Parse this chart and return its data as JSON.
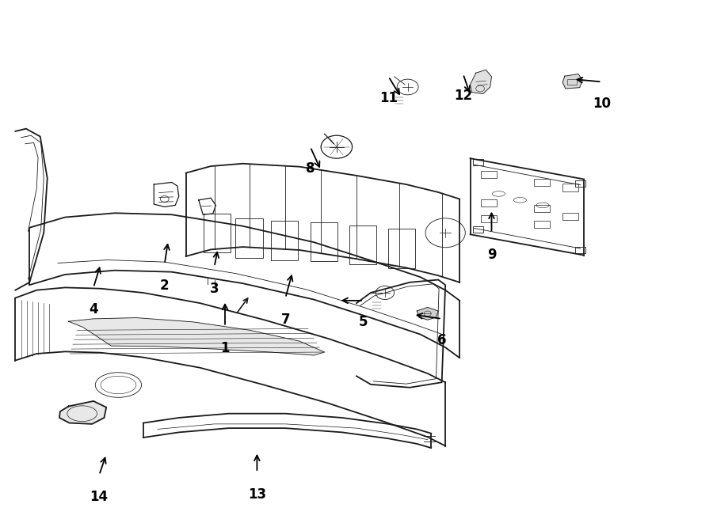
{
  "background_color": "#ffffff",
  "line_color": "#1a1a1a",
  "fig_width": 9.0,
  "fig_height": 6.61,
  "label_configs": {
    "1": [
      0.315,
      0.375,
      0.0,
      0.05
    ],
    "2": [
      0.23,
      0.495,
      0.005,
      0.045
    ],
    "3": [
      0.3,
      0.49,
      0.005,
      0.035
    ],
    "4": [
      0.13,
      0.45,
      0.01,
      0.045
    ],
    "5": [
      0.51,
      0.425,
      -0.035,
      0.0
    ],
    "6": [
      0.62,
      0.39,
      -0.04,
      0.008
    ],
    "7": [
      0.4,
      0.43,
      0.01,
      0.05
    ],
    "8": [
      0.435,
      0.72,
      0.015,
      -0.045
    ],
    "9": [
      0.69,
      0.555,
      0.0,
      0.045
    ],
    "10": [
      0.845,
      0.845,
      -0.04,
      0.005
    ],
    "11": [
      0.545,
      0.855,
      0.018,
      -0.04
    ],
    "12": [
      0.65,
      0.86,
      0.01,
      -0.04
    ],
    "13": [
      0.36,
      0.095,
      0.0,
      0.04
    ],
    "14": [
      0.138,
      0.09,
      0.01,
      0.04
    ]
  }
}
